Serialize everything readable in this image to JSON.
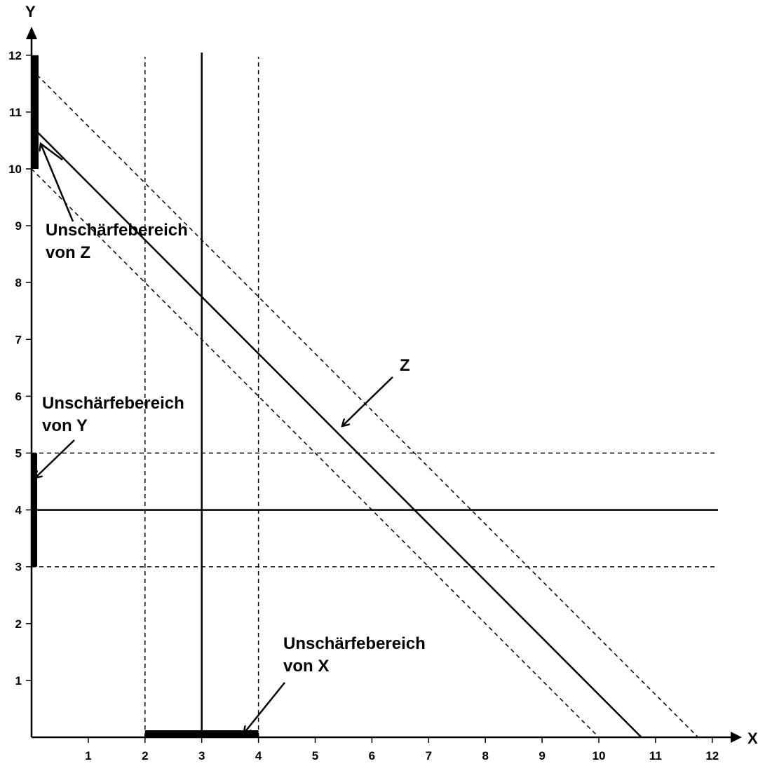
{
  "axes": {
    "x_title": "X",
    "y_title": "Y",
    "x_ticks": [
      "1",
      "2",
      "3",
      "4",
      "5",
      "6",
      "7",
      "8",
      "9",
      "10",
      "11",
      "12"
    ],
    "y_ticks": [
      "1",
      "2",
      "3",
      "4",
      "5",
      "6",
      "7",
      "8",
      "9",
      "10",
      "11",
      "12"
    ]
  },
  "chart_data": {
    "type": "line",
    "xlim": [
      0,
      12
    ],
    "ylim": [
      0,
      12
    ],
    "grid": false,
    "lines": {
      "x_value": 3,
      "x_bounds": [
        2,
        4
      ],
      "y_value": 4,
      "y_bounds": [
        3,
        5
      ],
      "z_value": 11,
      "z_bounds": [
        10,
        12
      ]
    },
    "fuzzy_ranges": {
      "x": [
        2,
        4
      ],
      "y": [
        3,
        5
      ],
      "z": [
        10,
        12
      ]
    }
  },
  "annotations": {
    "z_label": "Z",
    "fuzzy_z": [
      "Unschärfebereich",
      "von Z"
    ],
    "fuzzy_y": [
      "Unschärfebereich",
      "von Y"
    ],
    "fuzzy_x": [
      "Unschärfebereich",
      "von X"
    ]
  }
}
